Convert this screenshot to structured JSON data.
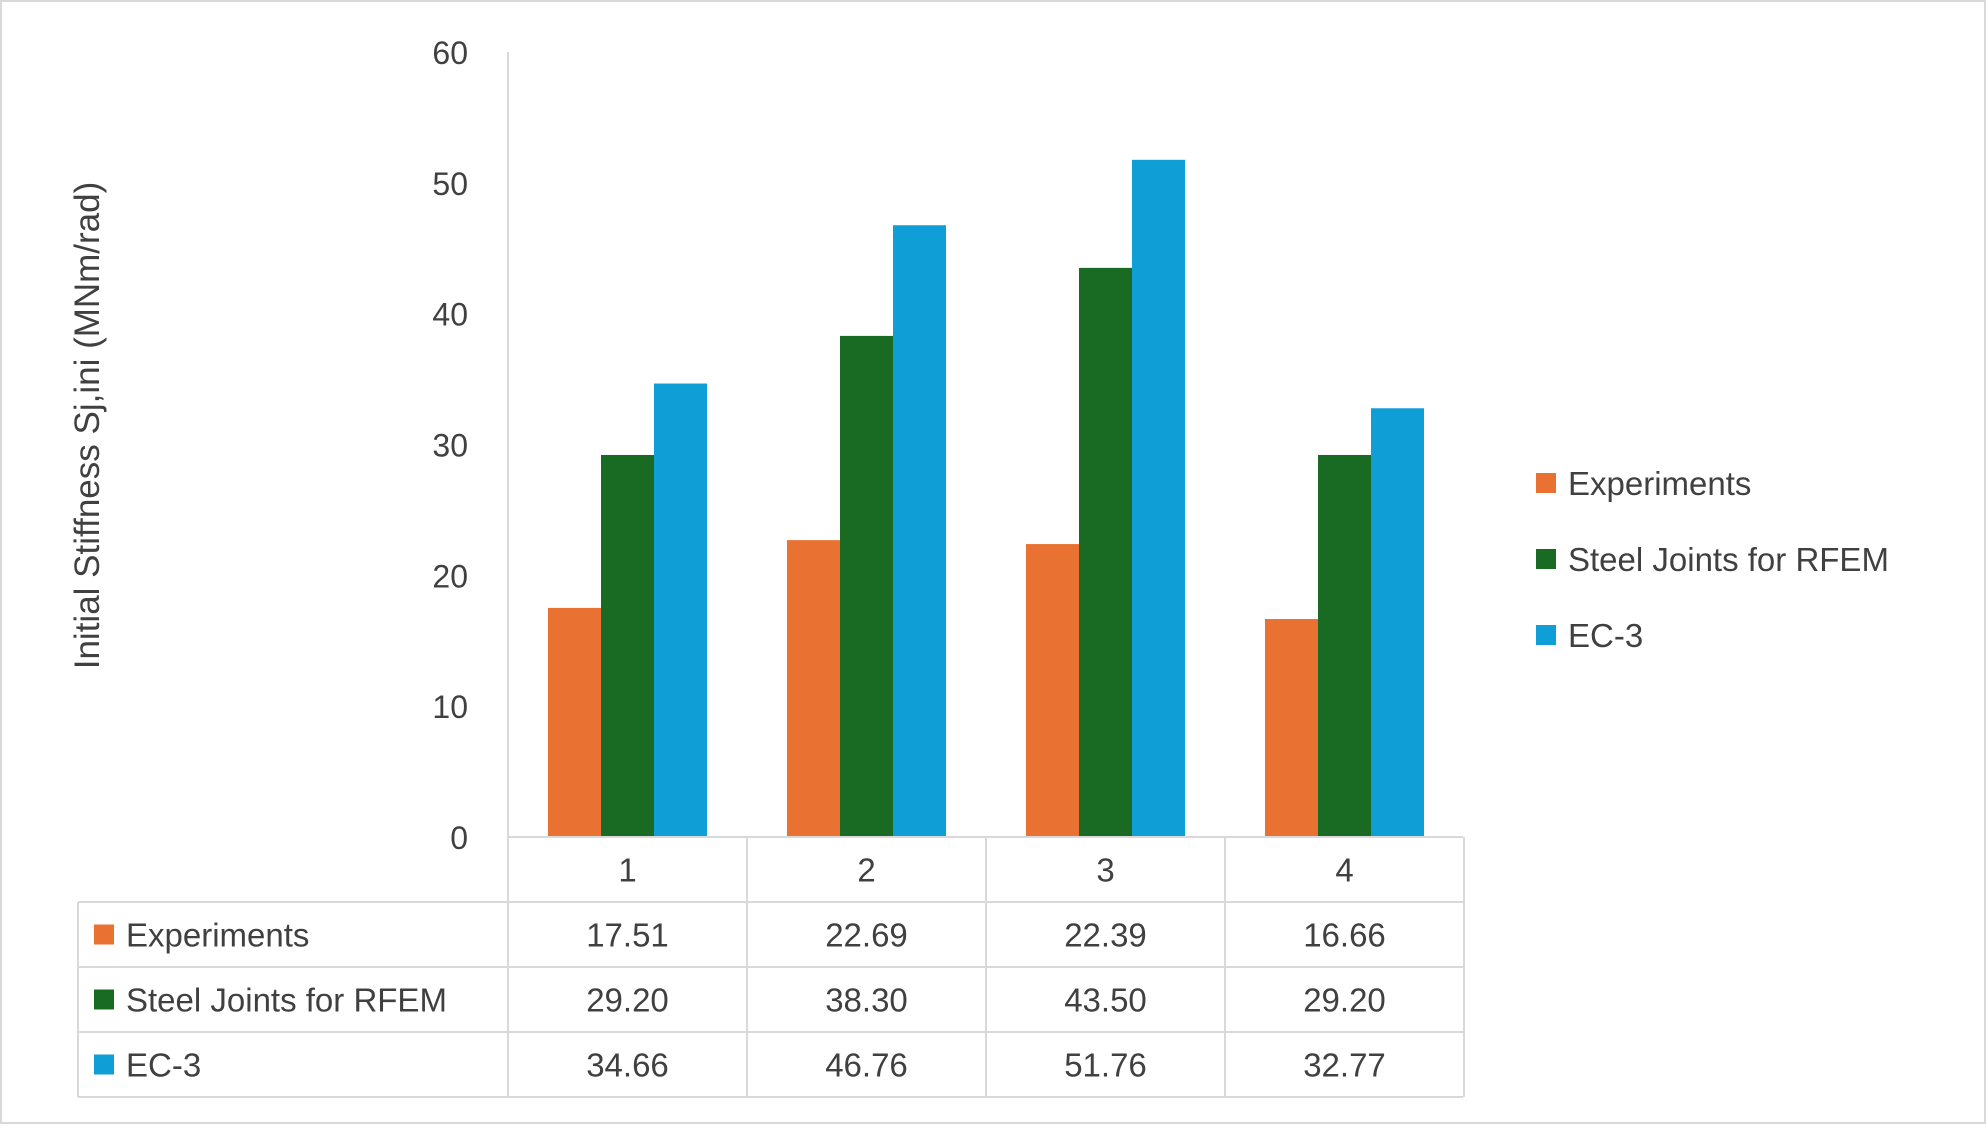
{
  "chart_data": {
    "type": "bar",
    "title": "",
    "xlabel": "",
    "ylabel": "Initial Stiffness Sj,ini (MNm/rad)",
    "ylim": [
      0,
      60
    ],
    "yticks": [
      0,
      10,
      20,
      30,
      40,
      50,
      60
    ],
    "grid": false,
    "legend": "right",
    "categories": [
      "1",
      "2",
      "3",
      "4"
    ],
    "series": [
      {
        "name": "Experiments",
        "color": "#E97132",
        "values": [
          17.51,
          22.69,
          22.39,
          16.66
        ],
        "labels": [
          "17.51",
          "22.69",
          "22.39",
          "16.66"
        ]
      },
      {
        "name": "Steel Joints for RFEM",
        "color": "#196B24",
        "values": [
          29.2,
          38.3,
          43.5,
          29.2
        ],
        "labels": [
          "29.20",
          "38.30",
          "43.50",
          "29.20"
        ]
      },
      {
        "name": "EC-3",
        "color": "#0F9ED5",
        "values": [
          34.66,
          46.76,
          51.76,
          32.77
        ],
        "labels": [
          "34.66",
          "46.76",
          "51.76",
          "32.77"
        ]
      }
    ],
    "data_table": true
  }
}
